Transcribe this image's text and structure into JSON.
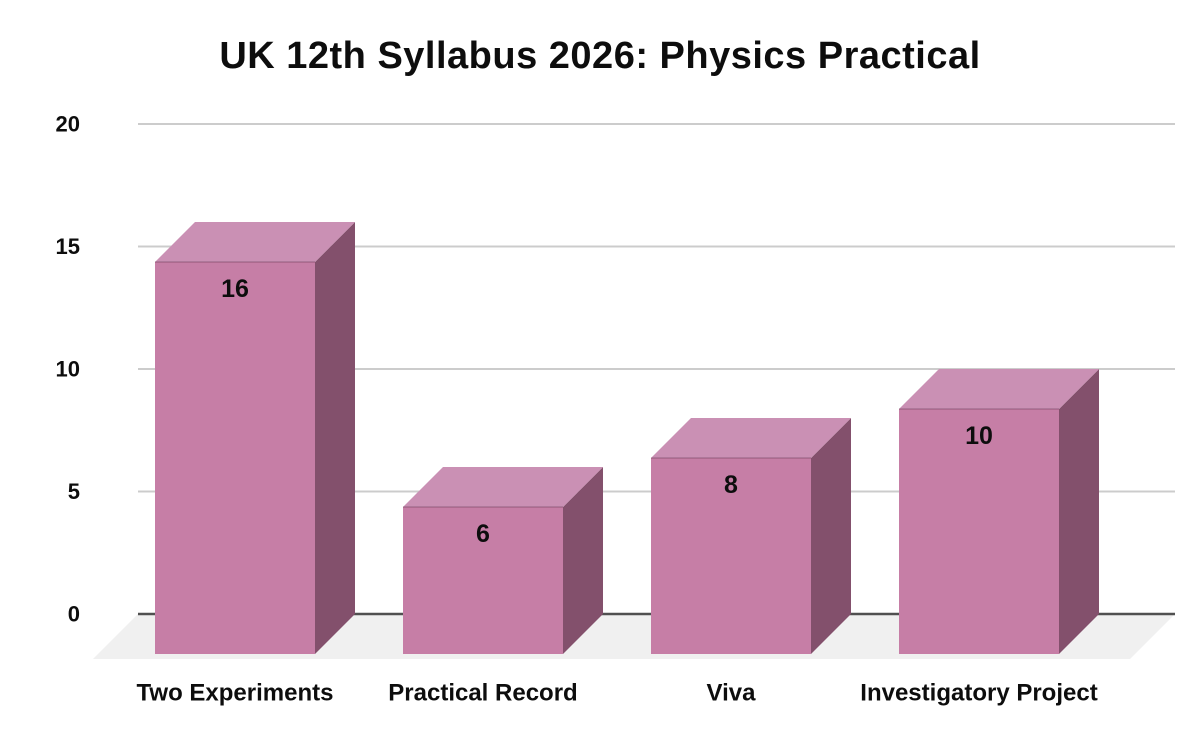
{
  "chart_data": {
    "type": "bar",
    "style": "3d-column",
    "title": "UK 12th Syllabus 2026: Physics Practical",
    "categories": [
      "Two Experiments",
      "Practical Record",
      "Viva",
      "Investigatory Project"
    ],
    "values": [
      16,
      6,
      8,
      10
    ],
    "value_labels": [
      "16",
      "6",
      "8",
      "10"
    ],
    "xlabel": "",
    "ylabel": "",
    "ylim": [
      0,
      20
    ],
    "yticks": [
      0,
      5,
      10,
      15,
      20
    ],
    "ytick_labels": [
      "0",
      "5",
      "10",
      "15",
      "20"
    ],
    "grid": true,
    "legend": false,
    "colors": {
      "bar_front": "#c67ea6",
      "bar_top": "#ca90b4",
      "bar_side": "#83506c",
      "gridline": "#cccccc",
      "axis_line": "#505050",
      "floor": "#f0f0f0",
      "text": "#0d0d0d",
      "background": "#ffffff"
    }
  }
}
